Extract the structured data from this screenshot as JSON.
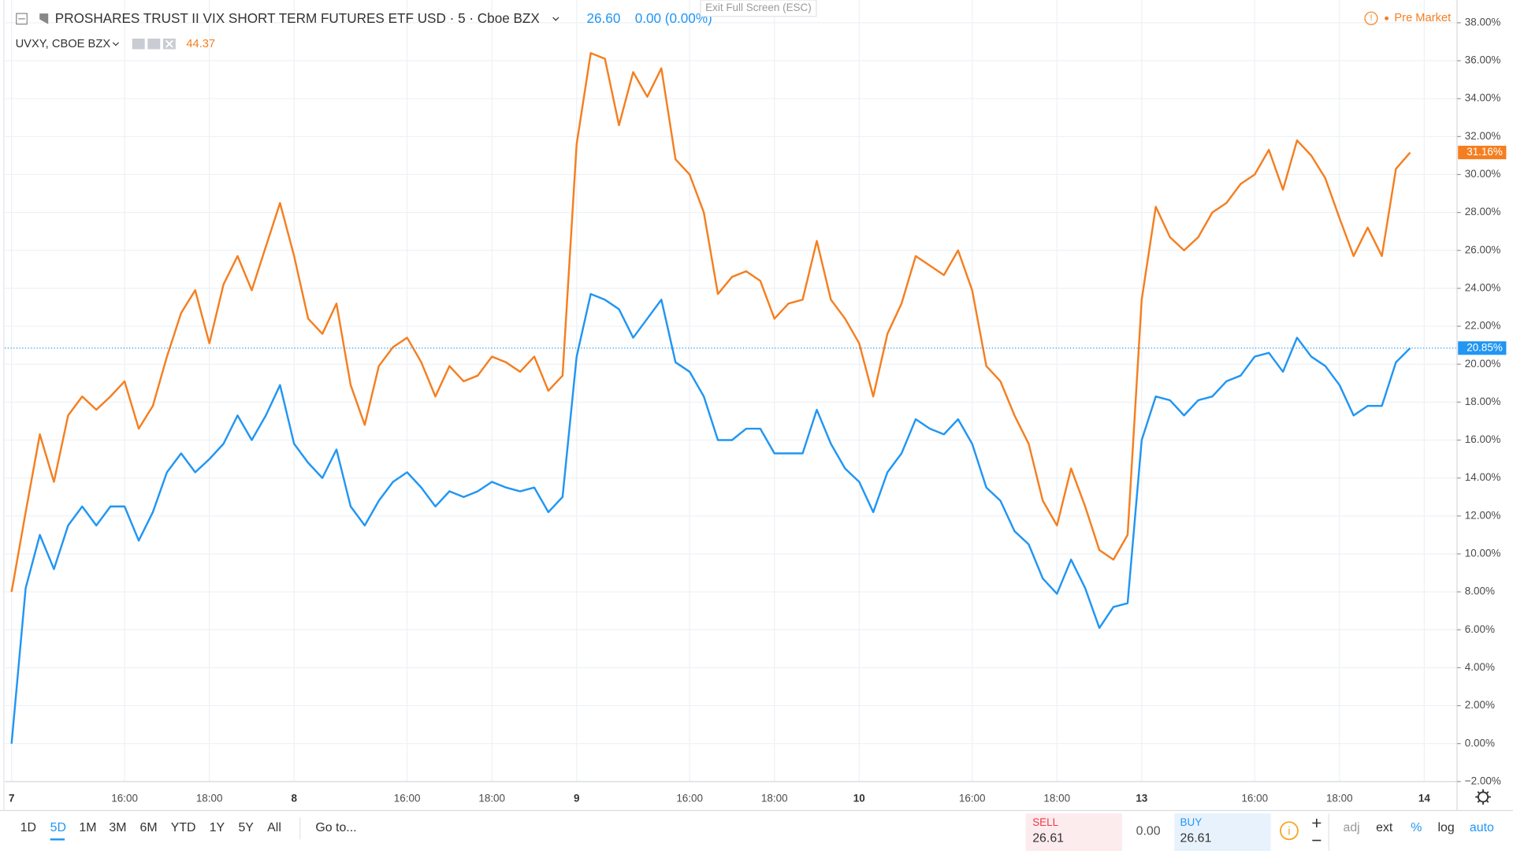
{
  "header": {
    "exit_fullscreen": "Exit Full Screen (ESC)",
    "session": "Pre Market"
  },
  "chart_data": {
    "type": "line",
    "categories": [
      "7",
      null,
      null,
      null,
      null,
      null,
      null,
      null,
      "16:00",
      null,
      null,
      null,
      null,
      null,
      "18:00",
      null,
      null,
      null,
      null,
      null,
      "8",
      null,
      null,
      null,
      null,
      null,
      null,
      null,
      "16:00",
      null,
      null,
      null,
      null,
      null,
      "18:00",
      null,
      null,
      null,
      null,
      null,
      "9",
      null,
      null,
      null,
      null,
      null,
      null,
      null,
      "16:00",
      null,
      null,
      null,
      null,
      null,
      "18:00",
      null,
      null,
      null,
      null,
      null,
      "10",
      null,
      null,
      null,
      null,
      null,
      null,
      null,
      "16:00",
      null,
      null,
      null,
      null,
      null,
      "18:00",
      null,
      null,
      null,
      null,
      null,
      "13",
      null,
      null,
      null,
      null,
      null,
      null,
      null,
      "16:00",
      null,
      null,
      null,
      null,
      null,
      "18:00",
      null,
      null,
      null,
      null,
      null,
      "14"
    ],
    "series": [
      {
        "name": "PROSHARES TRUST II VIX SHORT TERM FUTURES ETF USD · 5 · Cboe BZX",
        "color": "#2196f3",
        "price": "26.60",
        "change": "0.00 (0.00%)",
        "last_label": "20.85%",
        "values": [
          0,
          8.2,
          11,
          9.2,
          11.5,
          12.5,
          11.5,
          12.5,
          12.5,
          10.7,
          12.2,
          14.3,
          15.3,
          14.3,
          15,
          15.8,
          17.3,
          16,
          17.3,
          18.9,
          15.8,
          14.8,
          14,
          15.5,
          12.5,
          11.5,
          12.8,
          13.8,
          14.3,
          13.5,
          12.5,
          13.3,
          13,
          13.3,
          13.8,
          13.5,
          13.3,
          13.5,
          12.2,
          13,
          20.4,
          23.7,
          23.4,
          22.9,
          21.4,
          22.4,
          23.4,
          20.1,
          19.6,
          18.3,
          16,
          16,
          16.6,
          16.6,
          15.3,
          15.3,
          15.3,
          17.6,
          15.8,
          14.5,
          13.8,
          12.2,
          14.3,
          15.3,
          17.1,
          16.6,
          16.3,
          17.1,
          15.8,
          13.5,
          12.8,
          11.2,
          10.5,
          8.7,
          7.9,
          9.7,
          8.2,
          6.1,
          7.2,
          7.4,
          16,
          18.3,
          18.1,
          17.3,
          18.1,
          18.3,
          19.1,
          19.4,
          20.4,
          20.6,
          19.6,
          21.4,
          20.4,
          19.9,
          18.9,
          17.3,
          17.8,
          17.8,
          20.1,
          20.85,
          null
        ]
      },
      {
        "name": "UVXY, CBOE BZX",
        "color": "#f57f20",
        "price": "44.37",
        "last_label": "31.16%",
        "values": [
          8,
          12.2,
          16.3,
          13.8,
          17.3,
          18.3,
          17.6,
          18.3,
          19.1,
          16.6,
          17.8,
          20.4,
          22.7,
          23.9,
          21.1,
          24.2,
          25.7,
          23.9,
          26.2,
          28.5,
          25.7,
          22.4,
          21.6,
          23.2,
          18.9,
          16.8,
          19.9,
          20.9,
          21.4,
          20.1,
          18.3,
          19.9,
          19.1,
          19.4,
          20.4,
          20.1,
          19.6,
          20.4,
          18.6,
          19.4,
          31.6,
          36.4,
          36.1,
          32.6,
          35.4,
          34.1,
          35.6,
          30.8,
          30,
          28,
          23.7,
          24.6,
          24.9,
          24.4,
          22.4,
          23.2,
          23.4,
          26.5,
          23.4,
          22.4,
          21.1,
          18.3,
          21.6,
          23.2,
          25.7,
          25.2,
          24.7,
          26,
          23.9,
          19.9,
          19.1,
          17.3,
          15.8,
          12.8,
          11.5,
          14.5,
          12.5,
          10.2,
          9.7,
          11,
          23.4,
          28.3,
          26.7,
          26,
          26.7,
          28,
          28.5,
          29.5,
          30,
          31.3,
          29.2,
          31.8,
          31,
          29.8,
          27.7,
          25.7,
          27.2,
          25.7,
          30.3,
          31.16,
          null
        ]
      }
    ],
    "ylim": [
      -2,
      39.2
    ],
    "yticks": [
      {
        "value": -2,
        "label": "−2.00%"
      },
      {
        "value": 0,
        "label": "0.00%"
      },
      {
        "value": 2,
        "label": "2.00%"
      },
      {
        "value": 4,
        "label": "4.00%"
      },
      {
        "value": 6,
        "label": "6.00%"
      },
      {
        "value": 8,
        "label": "8.00%"
      },
      {
        "value": 10,
        "label": "10.00%"
      },
      {
        "value": 12,
        "label": "12.00%"
      },
      {
        "value": 14,
        "label": "14.00%"
      },
      {
        "value": 16,
        "label": "16.00%"
      },
      {
        "value": 18,
        "label": "18.00%"
      },
      {
        "value": 20,
        "label": "20.00%"
      },
      {
        "value": 22,
        "label": "22.00%"
      },
      {
        "value": 24,
        "label": "24.00%"
      },
      {
        "value": 26,
        "label": "26.00%"
      },
      {
        "value": 28,
        "label": "28.00%"
      },
      {
        "value": 30,
        "label": "30.00%"
      },
      {
        "value": 32,
        "label": "32.00%"
      },
      {
        "value": 34,
        "label": "34.00%"
      },
      {
        "value": 36,
        "label": "36.00%"
      },
      {
        "value": 38,
        "label": "38.00%"
      }
    ],
    "grid": true
  },
  "toolbar": {
    "ranges": [
      "1D",
      "5D",
      "1M",
      "3M",
      "6M",
      "YTD",
      "1Y",
      "5Y",
      "All"
    ],
    "goto": "Go to...",
    "sell_label": "SELL",
    "sell_price": "26.61",
    "spread": "0.00",
    "buy_label": "BUY",
    "buy_price": "26.61",
    "options": [
      "adj",
      "ext",
      "%",
      "log",
      "auto"
    ]
  }
}
